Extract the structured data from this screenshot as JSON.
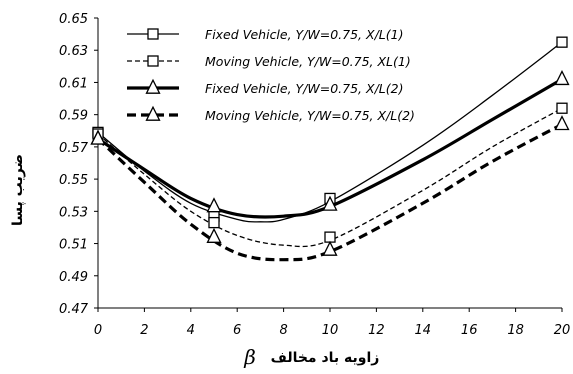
{
  "chart_data": {
    "type": "line",
    "ylabel": "ضریب پسا",
    "xlabel": "زاویه باد مخالف",
    "xlabel_symbol": "β",
    "xlim": [
      0,
      20
    ],
    "ylim": [
      0.47,
      0.65
    ],
    "x_ticks": [
      "0",
      "2",
      "4",
      "6",
      "8",
      "10",
      "12",
      "14",
      "16",
      "18",
      "20"
    ],
    "y_ticks": [
      "0.47",
      "0.49",
      "0.51",
      "0.53",
      "0.55",
      "0.57",
      "0.59",
      "0.61",
      "0.63",
      "0.65"
    ],
    "grid": false,
    "legend_position": "top-right",
    "series": [
      {
        "name": "Fixed Vehicle, Y/W=0.75, X/L(1)",
        "x": [
          0,
          5,
          10,
          20
        ],
        "values": [
          0.579,
          0.527,
          0.538,
          0.635
        ],
        "marker": "square",
        "dash": "solid",
        "width": 1.3,
        "color": "#000000",
        "curve": [
          [
            0,
            0.579
          ],
          [
            2,
            0.555
          ],
          [
            4,
            0.535
          ],
          [
            6,
            0.525
          ],
          [
            7,
            0.5235
          ],
          [
            8,
            0.525
          ],
          [
            10,
            0.536
          ],
          [
            14,
            0.571
          ],
          [
            17,
            0.602
          ],
          [
            20,
            0.635
          ]
        ]
      },
      {
        "name": "Moving Vehicle, Y/W=0.75, XL(1)",
        "x": [
          0,
          5,
          10,
          20
        ],
        "values": [
          0.578,
          0.523,
          0.514,
          0.594
        ],
        "marker": "square",
        "dash": "dashed",
        "width": 1.3,
        "color": "#000000",
        "curve": [
          [
            0,
            0.578
          ],
          [
            2,
            0.553
          ],
          [
            4,
            0.53
          ],
          [
            6,
            0.515
          ],
          [
            8,
            0.509
          ],
          [
            10,
            0.512
          ],
          [
            14,
            0.543
          ],
          [
            17,
            0.57
          ],
          [
            20,
            0.594
          ]
        ]
      },
      {
        "name": "Fixed Vehicle, Y/W=0.75, X/L(2)",
        "x": [
          0,
          5,
          10,
          20
        ],
        "values": [
          0.575,
          0.533,
          0.534,
          0.612
        ],
        "marker": "triangle",
        "dash": "solid",
        "width": 3.2,
        "color": "#000000",
        "curve": [
          [
            0,
            0.575
          ],
          [
            2,
            0.556
          ],
          [
            4,
            0.538
          ],
          [
            6,
            0.528
          ],
          [
            8,
            0.527
          ],
          [
            10,
            0.533
          ],
          [
            14,
            0.562
          ],
          [
            17,
            0.587
          ],
          [
            20,
            0.612
          ]
        ]
      },
      {
        "name": "Moving Vehicle, Y/W=0.75, X/L(2)",
        "x": [
          0,
          5,
          10,
          20
        ],
        "values": [
          0.575,
          0.514,
          0.506,
          0.584
        ],
        "marker": "triangle",
        "dash": "dashed",
        "width": 3.2,
        "color": "#000000",
        "curve": [
          [
            0,
            0.575
          ],
          [
            2,
            0.548
          ],
          [
            4,
            0.522
          ],
          [
            6,
            0.504
          ],
          [
            8,
            0.5
          ],
          [
            10,
            0.505
          ],
          [
            14,
            0.535
          ],
          [
            17,
            0.561
          ],
          [
            20,
            0.584
          ]
        ]
      }
    ]
  }
}
